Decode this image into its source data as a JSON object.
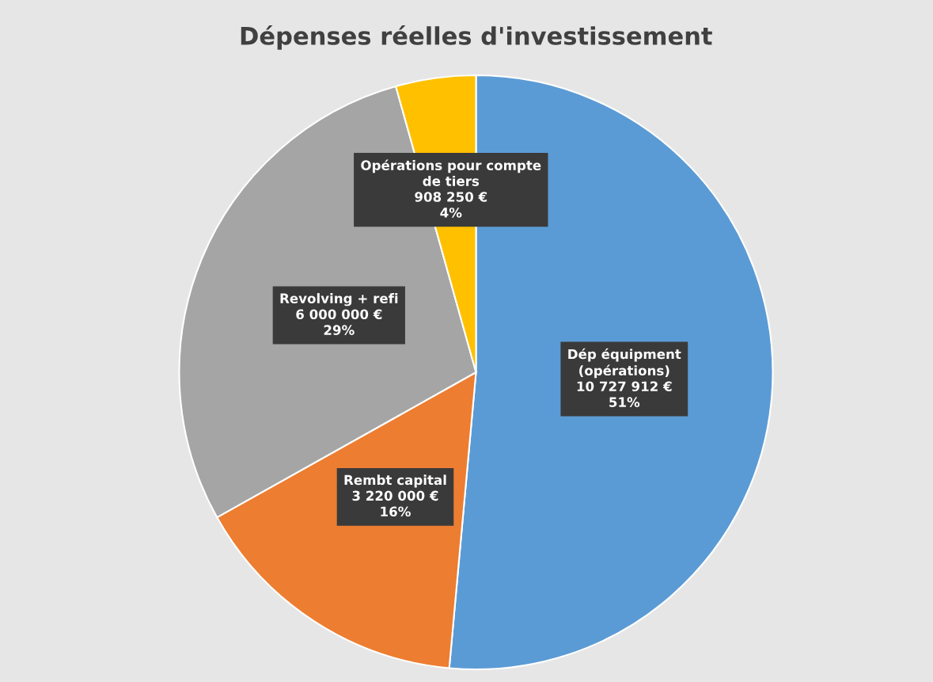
{
  "chart_data": {
    "type": "pie",
    "title": "Dépenses réelles d'investissement",
    "categories": [
      "Dép équipment\n(opérations)",
      "Rembt capital",
      "Revolving + refi",
      "Opérations pour compte\nde tiers"
    ],
    "values": [
      10727912,
      3220000,
      6000000,
      908250
    ],
    "value_labels": [
      "10 727 912 €\n51%",
      "3 220 000 €\n16%",
      "6 000 000 €\n29%",
      "908 250 €\n4%"
    ],
    "colors": [
      "#5b9bd5",
      "#ed7d31",
      "#a5a5a5",
      "#ffc000"
    ]
  }
}
